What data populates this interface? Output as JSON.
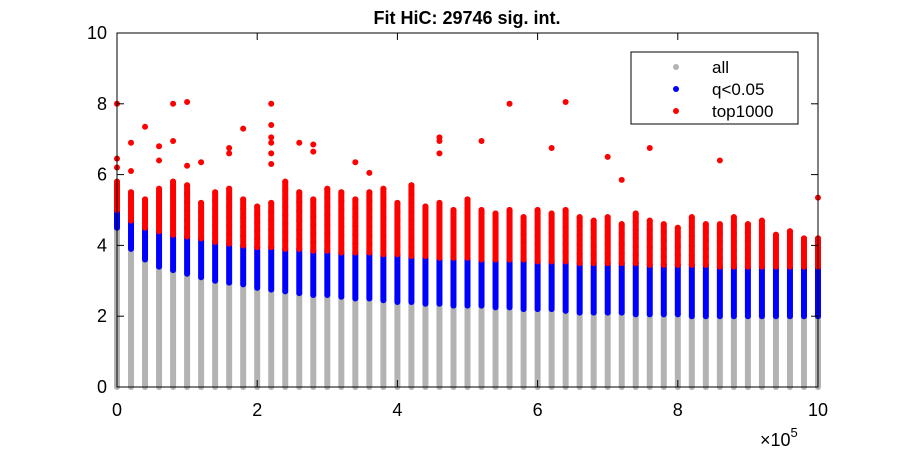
{
  "chart_data": {
    "type": "scatter",
    "title": "Fit HiC: 29746 sig. int.",
    "xlabel": "",
    "ylabel": "",
    "x_multiplier_label": "×10",
    "x_multiplier_exponent": "5",
    "xlim": [
      0,
      10
    ],
    "ylim": [
      0,
      10
    ],
    "x_ticks": [
      0,
      2,
      4,
      6,
      8,
      10
    ],
    "x_tick_labels": [
      "0",
      "2",
      "4",
      "6",
      "8",
      "10"
    ],
    "y_ticks": [
      0,
      2,
      4,
      6,
      8,
      10
    ],
    "y_tick_labels": [
      "0",
      "2",
      "4",
      "6",
      "8",
      "10"
    ],
    "grid": false,
    "legend_position": "top-right",
    "colors": {
      "all": "#b3b3b3",
      "q": "#0000ff",
      "top": "#ff0000"
    },
    "legend": [
      {
        "label": "all",
        "color": "#b3b3b3"
      },
      {
        "label": "q<0.05",
        "color": "#0000ff"
      },
      {
        "label": "top1000",
        "color": "#ff0000"
      }
    ],
    "columns": {
      "x": [
        0.0,
        0.2,
        0.4,
        0.6,
        0.8,
        1.0,
        1.2,
        1.4,
        1.6,
        1.8,
        2.0,
        2.2,
        2.4,
        2.6,
        2.8,
        3.0,
        3.2,
        3.4,
        3.6,
        3.8,
        4.0,
        4.2,
        4.4,
        4.6,
        4.8,
        5.0,
        5.2,
        5.4,
        5.6,
        5.8,
        6.0,
        6.2,
        6.4,
        6.6,
        6.8,
        7.0,
        7.2,
        7.4,
        7.6,
        7.8,
        8.0,
        8.2,
        8.4,
        8.6,
        8.8,
        9.0,
        9.2,
        9.4,
        9.6,
        9.8,
        10.0
      ],
      "all_top": [
        4.5,
        3.9,
        3.6,
        3.4,
        3.3,
        3.2,
        3.1,
        3.0,
        2.95,
        2.9,
        2.8,
        2.75,
        2.7,
        2.65,
        2.6,
        2.6,
        2.55,
        2.5,
        2.5,
        2.45,
        2.4,
        2.4,
        2.35,
        2.35,
        2.3,
        2.3,
        2.3,
        2.25,
        2.25,
        2.2,
        2.2,
        2.2,
        2.15,
        2.1,
        2.1,
        2.1,
        2.1,
        2.05,
        2.05,
        2.05,
        2.05,
        2.0,
        2.0,
        2.0,
        2.0,
        2.0,
        2.0,
        2.0,
        2.0,
        2.0,
        2.0
      ],
      "q_top": [
        5.0,
        4.7,
        4.5,
        4.4,
        4.3,
        4.25,
        4.2,
        4.1,
        4.05,
        4.0,
        3.95,
        3.95,
        3.9,
        3.9,
        3.85,
        3.85,
        3.8,
        3.8,
        3.8,
        3.75,
        3.75,
        3.7,
        3.7,
        3.65,
        3.65,
        3.65,
        3.6,
        3.6,
        3.6,
        3.6,
        3.55,
        3.55,
        3.55,
        3.5,
        3.5,
        3.5,
        3.5,
        3.5,
        3.45,
        3.45,
        3.45,
        3.45,
        3.45,
        3.4,
        3.4,
        3.4,
        3.4,
        3.4,
        3.4,
        3.4,
        3.4
      ],
      "red_top": [
        5.8,
        5.5,
        5.3,
        5.6,
        5.8,
        5.7,
        5.2,
        5.5,
        5.6,
        5.3,
        5.1,
        5.2,
        5.8,
        5.5,
        5.3,
        5.6,
        5.5,
        5.3,
        5.5,
        5.6,
        5.2,
        5.7,
        5.1,
        5.2,
        5.0,
        5.3,
        5.0,
        4.9,
        5.0,
        4.8,
        5.0,
        4.9,
        5.0,
        4.8,
        4.7,
        4.8,
        4.6,
        4.9,
        4.7,
        4.6,
        4.5,
        4.8,
        4.6,
        4.6,
        4.8,
        4.6,
        4.7,
        4.3,
        4.4,
        4.2,
        4.2
      ]
    },
    "outliers": [
      {
        "x": 0.0,
        "y": 8.0
      },
      {
        "x": 0.0,
        "y": 6.45
      },
      {
        "x": 0.0,
        "y": 6.2
      },
      {
        "x": 0.2,
        "y": 6.9
      },
      {
        "x": 0.2,
        "y": 6.1
      },
      {
        "x": 0.4,
        "y": 7.35
      },
      {
        "x": 0.6,
        "y": 6.8
      },
      {
        "x": 0.6,
        "y": 6.4
      },
      {
        "x": 0.8,
        "y": 8.0
      },
      {
        "x": 0.8,
        "y": 6.95
      },
      {
        "x": 1.0,
        "y": 8.05
      },
      {
        "x": 1.0,
        "y": 6.25
      },
      {
        "x": 1.2,
        "y": 6.35
      },
      {
        "x": 1.6,
        "y": 6.75
      },
      {
        "x": 1.6,
        "y": 6.6
      },
      {
        "x": 1.8,
        "y": 7.3
      },
      {
        "x": 2.2,
        "y": 8.0
      },
      {
        "x": 2.2,
        "y": 7.4
      },
      {
        "x": 2.2,
        "y": 7.05
      },
      {
        "x": 2.2,
        "y": 6.9
      },
      {
        "x": 2.2,
        "y": 6.6
      },
      {
        "x": 2.2,
        "y": 6.3
      },
      {
        "x": 2.6,
        "y": 6.9
      },
      {
        "x": 2.8,
        "y": 6.85
      },
      {
        "x": 2.8,
        "y": 6.65
      },
      {
        "x": 3.4,
        "y": 6.35
      },
      {
        "x": 3.6,
        "y": 6.05
      },
      {
        "x": 4.6,
        "y": 7.05
      },
      {
        "x": 4.6,
        "y": 6.95
      },
      {
        "x": 4.6,
        "y": 6.6
      },
      {
        "x": 5.2,
        "y": 6.95
      },
      {
        "x": 5.6,
        "y": 8.0
      },
      {
        "x": 6.2,
        "y": 6.75
      },
      {
        "x": 6.4,
        "y": 8.05
      },
      {
        "x": 7.0,
        "y": 6.5
      },
      {
        "x": 7.2,
        "y": 5.85
      },
      {
        "x": 7.6,
        "y": 6.75
      },
      {
        "x": 8.6,
        "y": 6.4
      },
      {
        "x": 10.0,
        "y": 5.35
      }
    ]
  }
}
